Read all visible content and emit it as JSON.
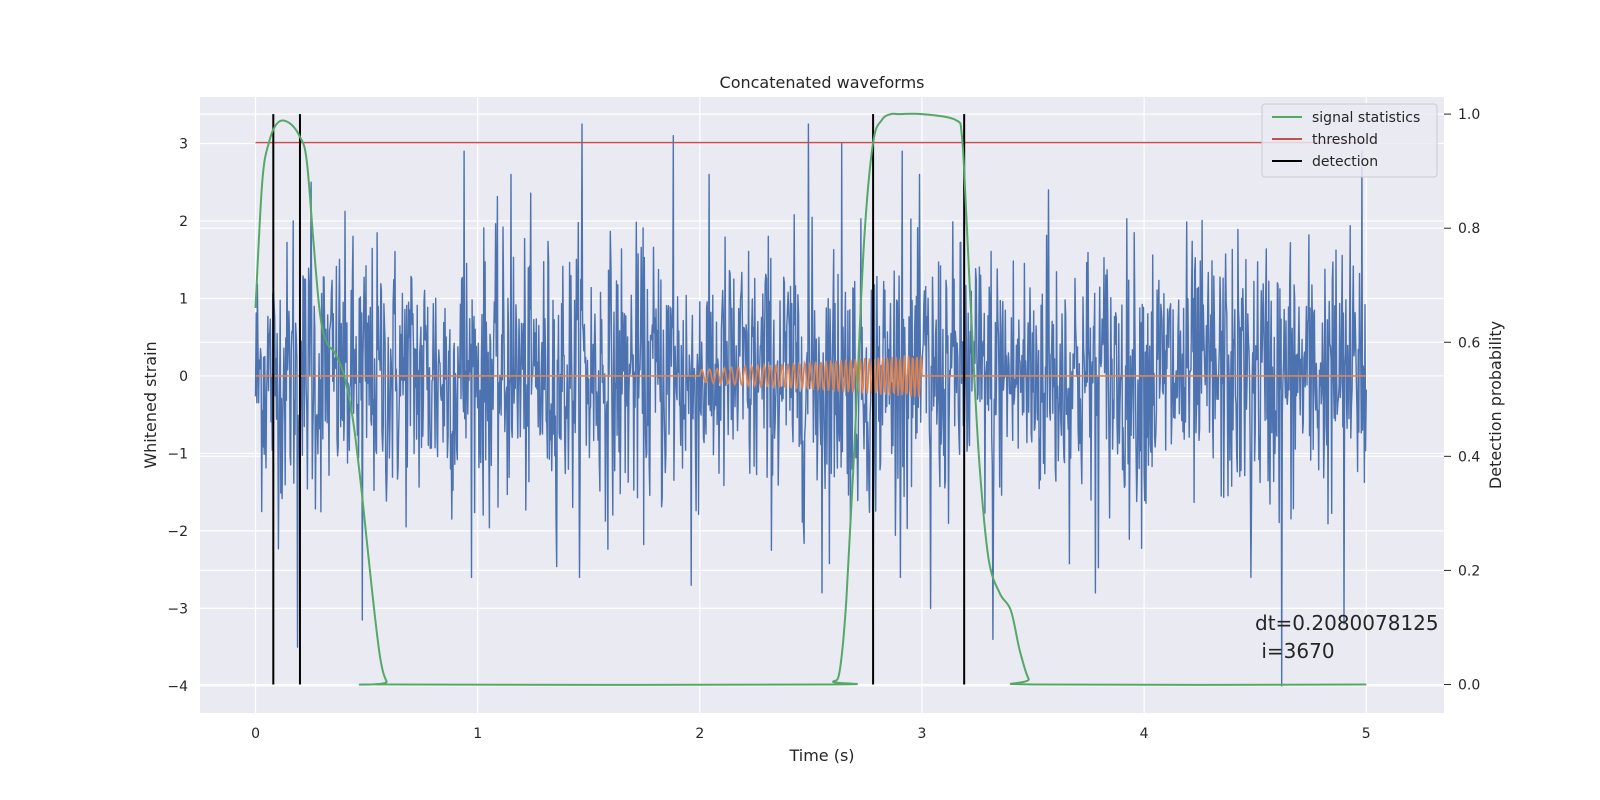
{
  "chart_data": {
    "type": "line",
    "title": "Concatenated waveforms",
    "xlabel": "Time (s)",
    "ylabel": "Whitened strain",
    "y2label": "Detection probability",
    "xlim": [
      -0.25,
      5.35
    ],
    "ylim": [
      -4.35,
      3.6
    ],
    "y2lim": [
      -0.05,
      1.03
    ],
    "xticks": [
      0,
      1,
      2,
      3,
      4,
      5
    ],
    "yticks": [
      -4,
      -3,
      -2,
      -1,
      0,
      1,
      2,
      3
    ],
    "y2ticks": [
      0.0,
      0.2,
      0.4,
      0.6,
      0.8,
      1.0
    ],
    "grid": true,
    "legend_position": "top-right",
    "colors": {
      "plot_bg": "#eaeaf2",
      "grid": "#ffffff",
      "strain": "#4c72b0",
      "template": "#dd8452",
      "stat": "#55a868",
      "threshold": "#c44e52",
      "detection": "#000000"
    },
    "series": [
      {
        "key": "strain",
        "description_hidden": true,
        "sample_count": 1800,
        "x_range": [
          0,
          5
        ],
        "amplitude_rms": 0.85,
        "spikes": [
          {
            "x": 0.17,
            "y": 2.0
          },
          {
            "x": 0.19,
            "y": -3.5
          },
          {
            "x": 0.25,
            "y": 2.5
          },
          {
            "x": 0.48,
            "y": -3.15
          },
          {
            "x": 0.94,
            "y": 2.9
          },
          {
            "x": 1.15,
            "y": 2.6
          },
          {
            "x": 1.47,
            "y": 3.25
          },
          {
            "x": 1.88,
            "y": 3.1
          },
          {
            "x": 1.96,
            "y": -2.7
          },
          {
            "x": 2.49,
            "y": 3.25
          },
          {
            "x": 2.55,
            "y": -2.8
          },
          {
            "x": 2.64,
            "y": 3.0
          },
          {
            "x": 2.78,
            "y": -3.3
          },
          {
            "x": 2.91,
            "y": 2.9
          },
          {
            "x": 3.04,
            "y": -3.0
          },
          {
            "x": 3.32,
            "y": -3.4
          },
          {
            "x": 3.57,
            "y": 2.4
          },
          {
            "x": 3.78,
            "y": -2.8
          },
          {
            "x": 4.48,
            "y": -2.6
          },
          {
            "x": 4.62,
            "y": -4.0
          },
          {
            "x": 4.7,
            "y": 0.05
          },
          {
            "x": 4.9,
            "y": -3.2
          },
          {
            "x": 4.98,
            "y": 2.9
          }
        ]
      }
    ],
    "template": {
      "x_start": 2.0,
      "x_end": 3.0,
      "amp_start": 0.08,
      "amp_end": 0.28,
      "f_start": 28,
      "f_end": 55
    },
    "signal_statistics": {
      "name": "signal statistics",
      "x": [
        0,
        0.03,
        0.06,
        0.1,
        0.15,
        0.2,
        0.23,
        0.26,
        0.29,
        0.32,
        0.36,
        0.4,
        0.44,
        0.48,
        0.52,
        0.56,
        0.59,
        0.62,
        2.55,
        2.6,
        2.63,
        2.66,
        2.7,
        2.74,
        2.78,
        2.82,
        2.86,
        2.9,
        3.0,
        3.15,
        3.18,
        3.2,
        3.23,
        3.26,
        3.3,
        3.35,
        3.4,
        3.44,
        3.48,
        3.52,
        5.0
      ],
      "y": [
        0.66,
        0.88,
        0.95,
        0.985,
        0.985,
        0.96,
        0.92,
        0.78,
        0.65,
        0.6,
        0.58,
        0.54,
        0.46,
        0.33,
        0.18,
        0.05,
        0.005,
        0.0,
        0.0,
        0.005,
        0.025,
        0.15,
        0.45,
        0.78,
        0.95,
        0.99,
        1.0,
        1.0,
        1.0,
        0.99,
        0.96,
        0.82,
        0.58,
        0.38,
        0.22,
        0.16,
        0.13,
        0.06,
        0.01,
        0.0,
        0.0
      ]
    },
    "threshold": {
      "name": "threshold",
      "value": 0.95,
      "x_range": [
        0,
        5
      ]
    },
    "detection": {
      "name": "detection",
      "x": [
        0.08,
        0.2,
        2.78,
        3.19
      ]
    },
    "annotation": {
      "line1": "dt=0.2080078125",
      "line2": " i=3670",
      "x": 4.5,
      "y": -3.25
    }
  }
}
